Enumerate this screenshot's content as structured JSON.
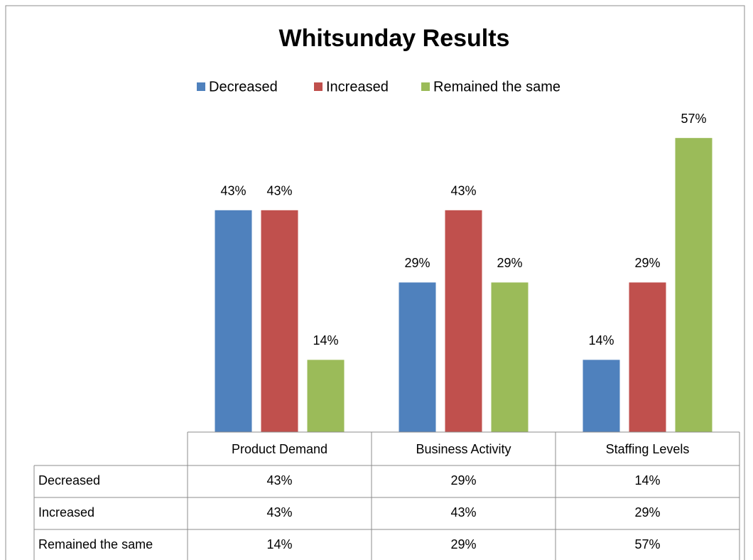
{
  "chart_data": {
    "type": "bar",
    "title": "Whitsunday Results",
    "categories": [
      "Product Demand",
      "Business Activity",
      "Staffing Levels"
    ],
    "series": [
      {
        "name": "Decreased",
        "color": "#4f81bd",
        "values": [
          43,
          29,
          14
        ],
        "value_labels": [
          "43%",
          "29%",
          "14%"
        ]
      },
      {
        "name": "Increased",
        "color": "#c0504d",
        "values": [
          43,
          43,
          29
        ],
        "value_labels": [
          "43%",
          "43%",
          "29%"
        ]
      },
      {
        "name": "Remained the same",
        "color": "#9bbb59",
        "values": [
          14,
          29,
          57
        ],
        "value_labels": [
          "14%",
          "29%",
          "57%"
        ]
      }
    ],
    "legend": "top",
    "data_table": true
  }
}
